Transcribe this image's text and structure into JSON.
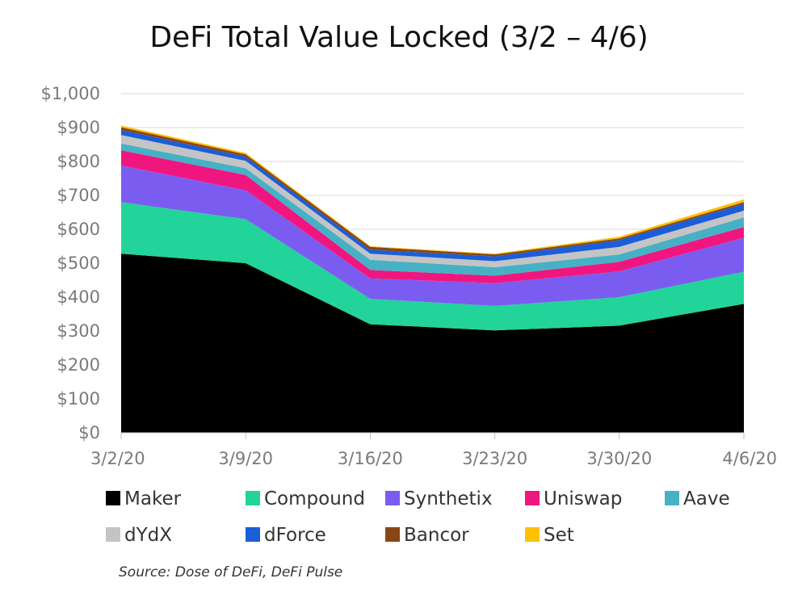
{
  "chart_data": {
    "type": "area",
    "stacked": true,
    "title": "DeFi Total Value Locked (3/2 – 4/6)",
    "xlabel": "",
    "ylabel": "",
    "categories": [
      "3/2/20",
      "3/9/20",
      "3/16/20",
      "3/23/20",
      "3/30/20",
      "4/6/20"
    ],
    "ylim": [
      0,
      1000
    ],
    "yticks": [
      0,
      100,
      200,
      300,
      400,
      500,
      600,
      700,
      800,
      900,
      1000
    ],
    "ytick_labels": [
      "$0",
      "$100",
      "$200",
      "$300",
      "$400",
      "$500",
      "$600",
      "$700",
      "$800",
      "$900",
      "$1,000"
    ],
    "grid": true,
    "legend_position": "bottom",
    "series": [
      {
        "name": "Maker",
        "color": "#000000",
        "values": [
          528,
          500,
          320,
          302,
          316,
          380
        ]
      },
      {
        "name": "Compound",
        "color": "#22d39a",
        "values": [
          152,
          130,
          75,
          72,
          84,
          95
        ]
      },
      {
        "name": "Synthetix",
        "color": "#7b5cf0",
        "values": [
          108,
          85,
          60,
          67,
          76,
          100
        ]
      },
      {
        "name": "Uniswap",
        "color": "#f0167f",
        "values": [
          45,
          45,
          25,
          22,
          28,
          32
        ]
      },
      {
        "name": "Aave",
        "color": "#46b1c4",
        "values": [
          20,
          20,
          30,
          25,
          22,
          28
        ]
      },
      {
        "name": "dYdX",
        "color": "#c4c4c4",
        "values": [
          25,
          22,
          18,
          18,
          22,
          20
        ]
      },
      {
        "name": "dForce",
        "color": "#1a5ed8",
        "values": [
          15,
          12,
          12,
          14,
          20,
          20
        ]
      },
      {
        "name": "Bancor",
        "color": "#8b4513",
        "values": [
          8,
          7,
          8,
          6,
          5,
          5
        ]
      },
      {
        "name": "Set",
        "color": "#ffc000",
        "values": [
          5,
          4,
          2,
          2,
          5,
          8
        ]
      }
    ],
    "source": "Source: Dose of DeFi, DeFi Pulse"
  }
}
